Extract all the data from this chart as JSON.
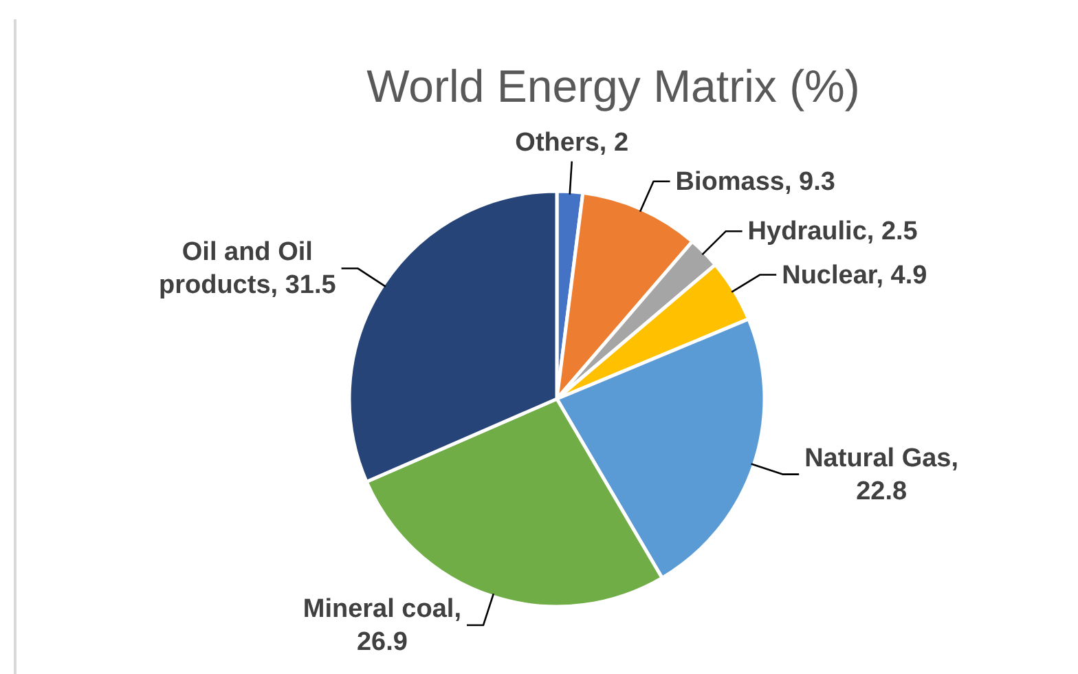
{
  "chart_data": {
    "type": "pie",
    "title": "World Energy Matrix (%)",
    "categories": [
      "Others, 2",
      "Biomass, 9.3",
      "Hydraulic, 2.5",
      "Nuclear, 4.9",
      "Natural Gas, 22.8",
      "Mineral coal, 26.9",
      "Oil and Oil products, 31.5"
    ],
    "values": [
      2,
      9.3,
      2.5,
      4.9,
      22.8,
      26.9,
      31.5
    ],
    "colors": [
      "#4472c4",
      "#ed7d31",
      "#a5a5a5",
      "#ffc000",
      "#5b9bd5",
      "#70ad47",
      "#264478"
    ]
  }
}
